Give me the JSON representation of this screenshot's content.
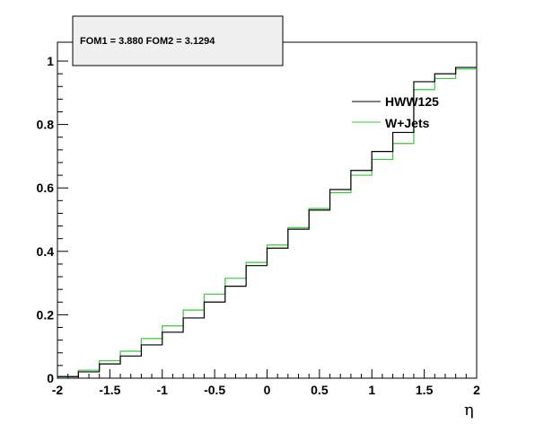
{
  "annotation": "FOM1 = 3.880 FOM2 = 3.1294",
  "chart_data": {
    "type": "line",
    "step": true,
    "xlabel": "η",
    "ylabel": "",
    "xlim": [
      -2,
      2
    ],
    "ylim": [
      0,
      1.0
    ],
    "x_ticks": [
      "-2",
      "-1.5",
      "-1",
      "-0.5",
      "0",
      "0.5",
      "1",
      "1.5",
      "2"
    ],
    "y_ticks": [
      "0",
      "0.2",
      "0.4",
      "0.6",
      "0.8",
      "1"
    ],
    "bin_edges": [
      -2.0,
      -1.8,
      -1.6,
      -1.4,
      -1.2,
      -1.0,
      -0.8,
      -0.6,
      -0.4,
      -0.2,
      0.0,
      0.2,
      0.4,
      0.6,
      0.8,
      1.0,
      1.2,
      1.4,
      1.6,
      1.8,
      2.0
    ],
    "legend_position": "top-right",
    "grid": false,
    "series": [
      {
        "name": "HWW125",
        "color": "#000000",
        "values": [
          0.005,
          0.02,
          0.045,
          0.07,
          0.105,
          0.145,
          0.19,
          0.24,
          0.29,
          0.355,
          0.41,
          0.47,
          0.53,
          0.595,
          0.655,
          0.715,
          0.775,
          0.82,
          0.86,
          0.905
        ]
      },
      {
        "name": "W+Jets",
        "color": "#33cc33",
        "values": [
          0.005,
          0.025,
          0.055,
          0.085,
          0.125,
          0.165,
          0.215,
          0.265,
          0.315,
          0.365,
          0.42,
          0.475,
          0.535,
          0.585,
          0.64,
          0.69,
          0.74,
          0.785,
          0.83,
          0.87
        ]
      }
    ],
    "tail_values": {
      "HWW125": [
        0.935,
        0.96,
        0.98
      ],
      "W+Jets": [
        0.91,
        0.945,
        0.975,
        1.0
      ]
    }
  }
}
